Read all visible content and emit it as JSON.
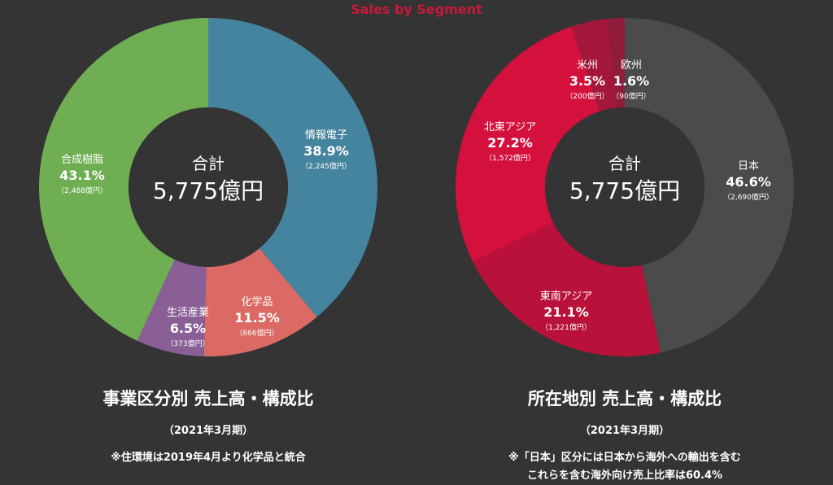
{
  "header": {
    "title": "Sales by Segment"
  },
  "chart_data": [
    {
      "type": "pie",
      "title": "事業区分別 売上高・構成比",
      "period": "（2021年3月期）",
      "note": "※住環境は2019年4月より化学品と統合",
      "center_label": "合計",
      "center_value": "5,775億円",
      "slices": [
        {
          "label": "情報電子",
          "percent": 38.9,
          "percent_text": "38.9%",
          "amount_text": "（2,245億円）",
          "color": "#45849f"
        },
        {
          "label": "化学品",
          "percent": 11.5,
          "percent_text": "11.5%",
          "amount_text": "（666億円）",
          "color": "#dc6a64"
        },
        {
          "label": "生活産業",
          "percent": 6.5,
          "percent_text": "6.5%",
          "amount_text": "（373億円）",
          "color": "#8a5f96"
        },
        {
          "label": "合成樹脂",
          "percent": 43.1,
          "percent_text": "43.1%",
          "amount_text": "（2,488億円）",
          "color": "#6fae53"
        }
      ]
    },
    {
      "type": "pie",
      "title": "所在地別 売上高・構成比",
      "period": "（2021年3月期）",
      "note": "※「日本」区分には日本から海外への輸出を含む",
      "note2": "これらを含む海外向け売上比率は60.4%",
      "center_label": "合計",
      "center_value": "5,775億円",
      "slices": [
        {
          "label": "日本",
          "percent": 46.6,
          "percent_text": "46.6%",
          "amount_text": "（2,690億円）",
          "color": "#4b4b4b"
        },
        {
          "label": "東南アジア",
          "percent": 21.1,
          "percent_text": "21.1%",
          "amount_text": "（1,221億円）",
          "color": "#b8123a"
        },
        {
          "label": "北東アジア",
          "percent": 27.2,
          "percent_text": "27.2%",
          "amount_text": "（1,572億円）",
          "color": "#d4103d"
        },
        {
          "label": "米州",
          "percent": 3.5,
          "percent_text": "3.5%",
          "amount_text": "（200億円）",
          "color": "#a3173b"
        },
        {
          "label": "欧州",
          "percent": 1.6,
          "percent_text": "1.6%",
          "amount_text": "（90億円）",
          "color": "#8f1c3a"
        }
      ]
    }
  ]
}
